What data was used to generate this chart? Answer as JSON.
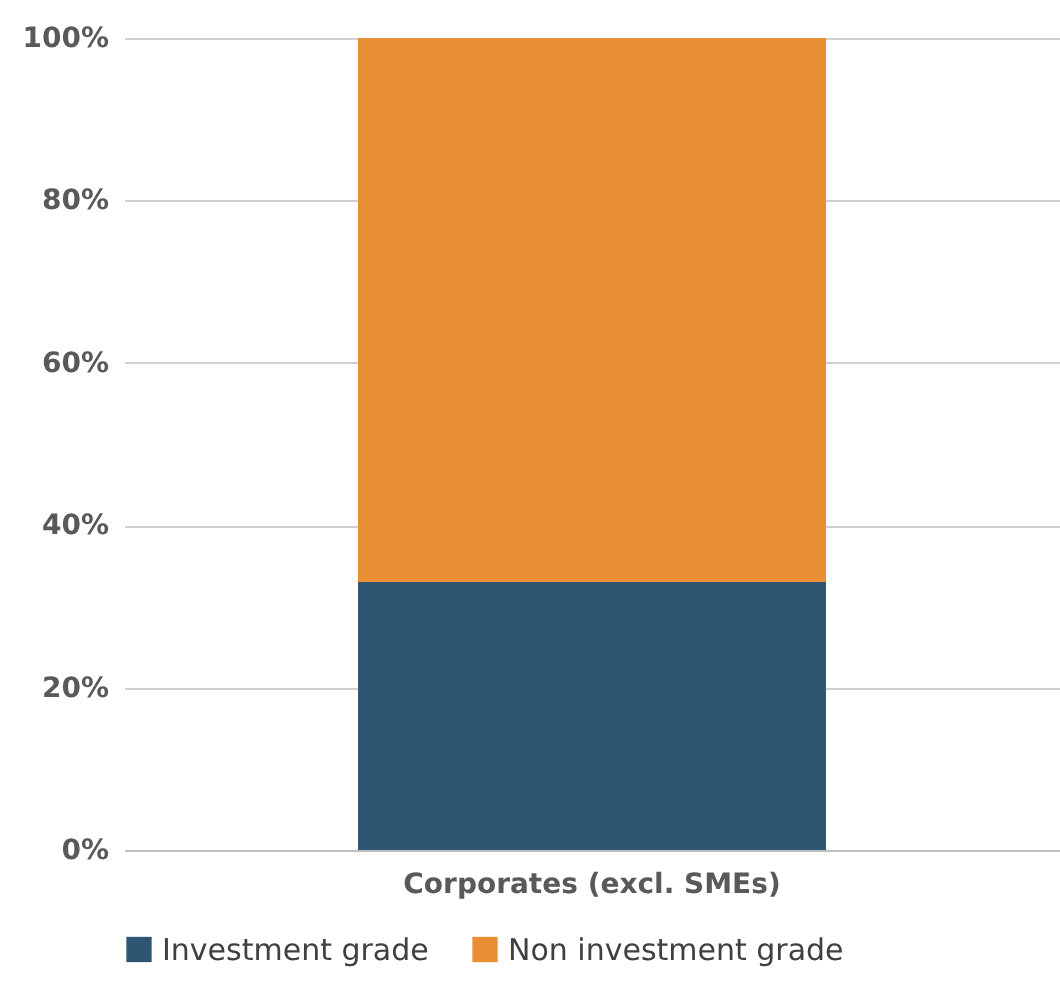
{
  "chart_data": {
    "type": "bar",
    "stacked": true,
    "categories": [
      "Corporates (excl. SMEs)"
    ],
    "series": [
      {
        "name": "Investment grade",
        "color": "#2e5572",
        "values": [
          33
        ]
      },
      {
        "name": "Non investment grade",
        "color": "#e88f33",
        "values": [
          67
        ]
      }
    ],
    "ylim": [
      0,
      100
    ],
    "yticks": [
      {
        "value": 0,
        "label": "0%"
      },
      {
        "value": 20,
        "label": "20%"
      },
      {
        "value": 40,
        "label": "40%"
      },
      {
        "value": 60,
        "label": "60%"
      },
      {
        "value": 80,
        "label": "80%"
      },
      {
        "value": 100,
        "label": "100%"
      }
    ],
    "grid": "y",
    "legend": "bottom"
  }
}
